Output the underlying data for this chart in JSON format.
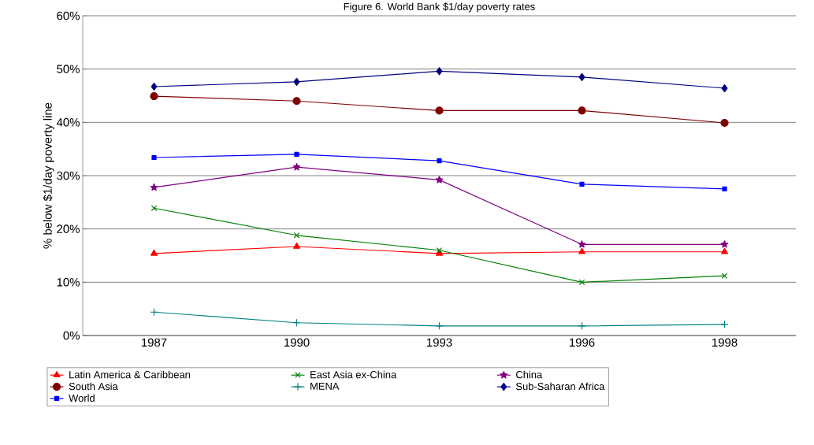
{
  "chart_data": {
    "type": "line",
    "title": "Figure 6. World Bank $1/day poverty rates",
    "ylabel": "% below $1/day poverty line",
    "categories": [
      "1987",
      "1990",
      "1993",
      "1996",
      "1998"
    ],
    "series": [
      {
        "name": "Latin America & Caribbean",
        "color": "#ff0000",
        "marker": "triangle",
        "values": [
          15.4,
          16.7,
          15.4,
          15.7,
          15.7
        ]
      },
      {
        "name": "East Asia ex-China",
        "color": "#008000",
        "marker": "cross",
        "values": [
          23.9,
          18.8,
          16.0,
          10.0,
          11.2
        ]
      },
      {
        "name": "China",
        "color": "#800080",
        "marker": "star",
        "values": [
          27.8,
          31.6,
          29.2,
          17.1,
          17.1
        ]
      },
      {
        "name": "South Asia",
        "color": "#800000",
        "marker": "circle",
        "values": [
          44.9,
          44.0,
          42.2,
          42.2,
          39.9
        ]
      },
      {
        "name": "MENA",
        "color": "#008080",
        "marker": "plus",
        "values": [
          4.4,
          2.4,
          1.8,
          1.8,
          2.1
        ]
      },
      {
        "name": "Sub-Saharan Africa",
        "color": "#000080",
        "marker": "diamond",
        "values": [
          46.7,
          47.6,
          49.6,
          48.5,
          46.4
        ]
      },
      {
        "name": "World",
        "color": "#0000ff",
        "marker": "square",
        "values": [
          33.4,
          34.0,
          32.8,
          28.4,
          27.5
        ]
      }
    ],
    "ylim": [
      0,
      60
    ],
    "yticks": [
      {
        "value": 0,
        "label": "0%"
      },
      {
        "value": 10,
        "label": "10%"
      },
      {
        "value": 20,
        "label": "20%"
      },
      {
        "value": 30,
        "label": "30%"
      },
      {
        "value": 40,
        "label": "40%"
      },
      {
        "value": 50,
        "label": "50%"
      },
      {
        "value": 60,
        "label": "60%"
      }
    ],
    "grid": "y",
    "legend": "bottom"
  }
}
